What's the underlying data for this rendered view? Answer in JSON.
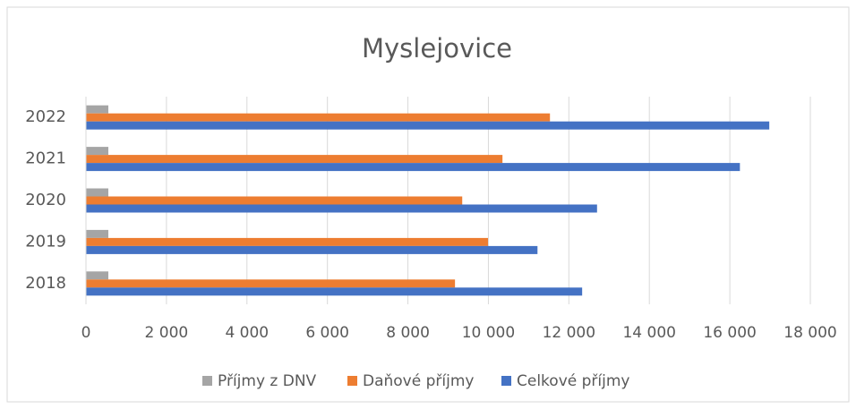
{
  "chart_data": {
    "type": "hbar",
    "title": "Myslejovice",
    "categories": [
      "2018",
      "2019",
      "2020",
      "2021",
      "2022"
    ],
    "series": [
      {
        "name": "Příjmy z DNV",
        "color": "#a5a5a5",
        "values": [
          556,
          556,
          556,
          556,
          556
        ]
      },
      {
        "name": "Daňové příjmy",
        "color": "#ed7d31",
        "values": [
          9170,
          9990,
          9350,
          10350,
          11530
        ]
      },
      {
        "name": "Celkové příjmy",
        "color": "#4472c4",
        "values": [
          12330,
          11220,
          12700,
          16250,
          16980
        ]
      }
    ],
    "xlim": [
      0,
      18000
    ],
    "xticks": [
      0,
      {
        "value": 2000,
        "label": "2 000"
      },
      {
        "value": 4000,
        "label": "4 000"
      },
      {
        "value": 6000,
        "label": "6 000"
      },
      {
        "value": 8000,
        "label": "8 000"
      },
      {
        "value": 10000,
        "label": "10 000"
      },
      {
        "value": 12000,
        "label": "12 000"
      },
      {
        "value": 14000,
        "label": "14 000"
      },
      {
        "value": 16000,
        "label": "16 000"
      },
      {
        "value": 18000,
        "label": "18 000"
      }
    ],
    "grid": true,
    "legend": "bottom"
  }
}
